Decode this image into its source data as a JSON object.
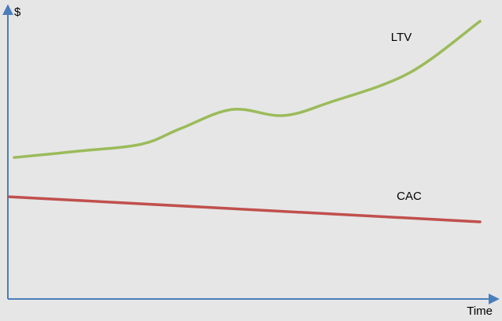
{
  "chart_data": {
    "type": "line",
    "xlabel": "Time",
    "ylabel": "$",
    "xlim": [
      0,
      100
    ],
    "ylim": [
      0,
      100
    ],
    "series": [
      {
        "name": "LTV",
        "color": "#9bbb59",
        "x": [
          1.3,
          14.6,
          27.5,
          35.6,
          46.1,
          56.6,
          66.3,
          82.5,
          97.1
        ],
        "values": [
          48.6,
          50.8,
          53.2,
          58.6,
          65.1,
          63.0,
          67.6,
          77.6,
          95.4
        ]
      },
      {
        "name": "CAC",
        "color": "#c0504d",
        "x": [
          0.3,
          97.1
        ],
        "values": [
          35.1,
          26.5
        ]
      }
    ]
  }
}
